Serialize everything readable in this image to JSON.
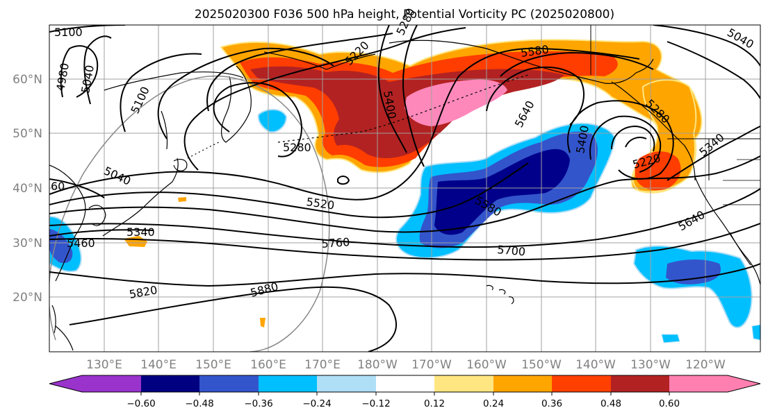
{
  "title": "2025020300 F036 500 hPa height, Potential Vorticity PC (2025020800)",
  "lat_labels": [
    "60°N",
    "50°N",
    "40°N",
    "30°N",
    "20°N"
  ],
  "lon_labels": [
    "130°E",
    "140°E",
    "150°E",
    "160°E",
    "170°E",
    "180°W",
    "170°W",
    "160°W",
    "150°W",
    "140°W",
    "130°W",
    "120°W"
  ],
  "contour_labels": [
    "5100",
    "4980",
    "5040",
    "5100",
    "5220",
    "5280",
    "5580",
    "5280",
    "5400",
    "5640",
    "5220",
    "5400",
    "5280",
    "5340",
    "5520",
    "5580",
    "5640",
    "5340",
    "5460",
    "5760",
    "5700",
    "5820",
    "5880",
    "5040",
    "5040",
    "60"
  ],
  "colorbar": {
    "ticks": [
      "−0.60",
      "−0.48",
      "−0.36",
      "−0.24",
      "−0.12",
      "0.12",
      "0.24",
      "0.36",
      "0.48",
      "0.60"
    ],
    "colors": [
      "#9933cc",
      "#000080",
      "#3355cc",
      "#00bfff",
      "#aedff7",
      "#ffffff",
      "#ffe680",
      "#ffa500",
      "#ff4000",
      "#b22222",
      "#ff80b0"
    ]
  },
  "shading_colors": {
    "pink": "#ff88bb",
    "darkred": "#b22222",
    "red": "#ff3d00",
    "orange": "#ffa500",
    "yellow": "#ffe680",
    "navy": "#00008b",
    "blue": "#3355cc",
    "cyan": "#00bfff",
    "lightblue": "#aedff7"
  }
}
